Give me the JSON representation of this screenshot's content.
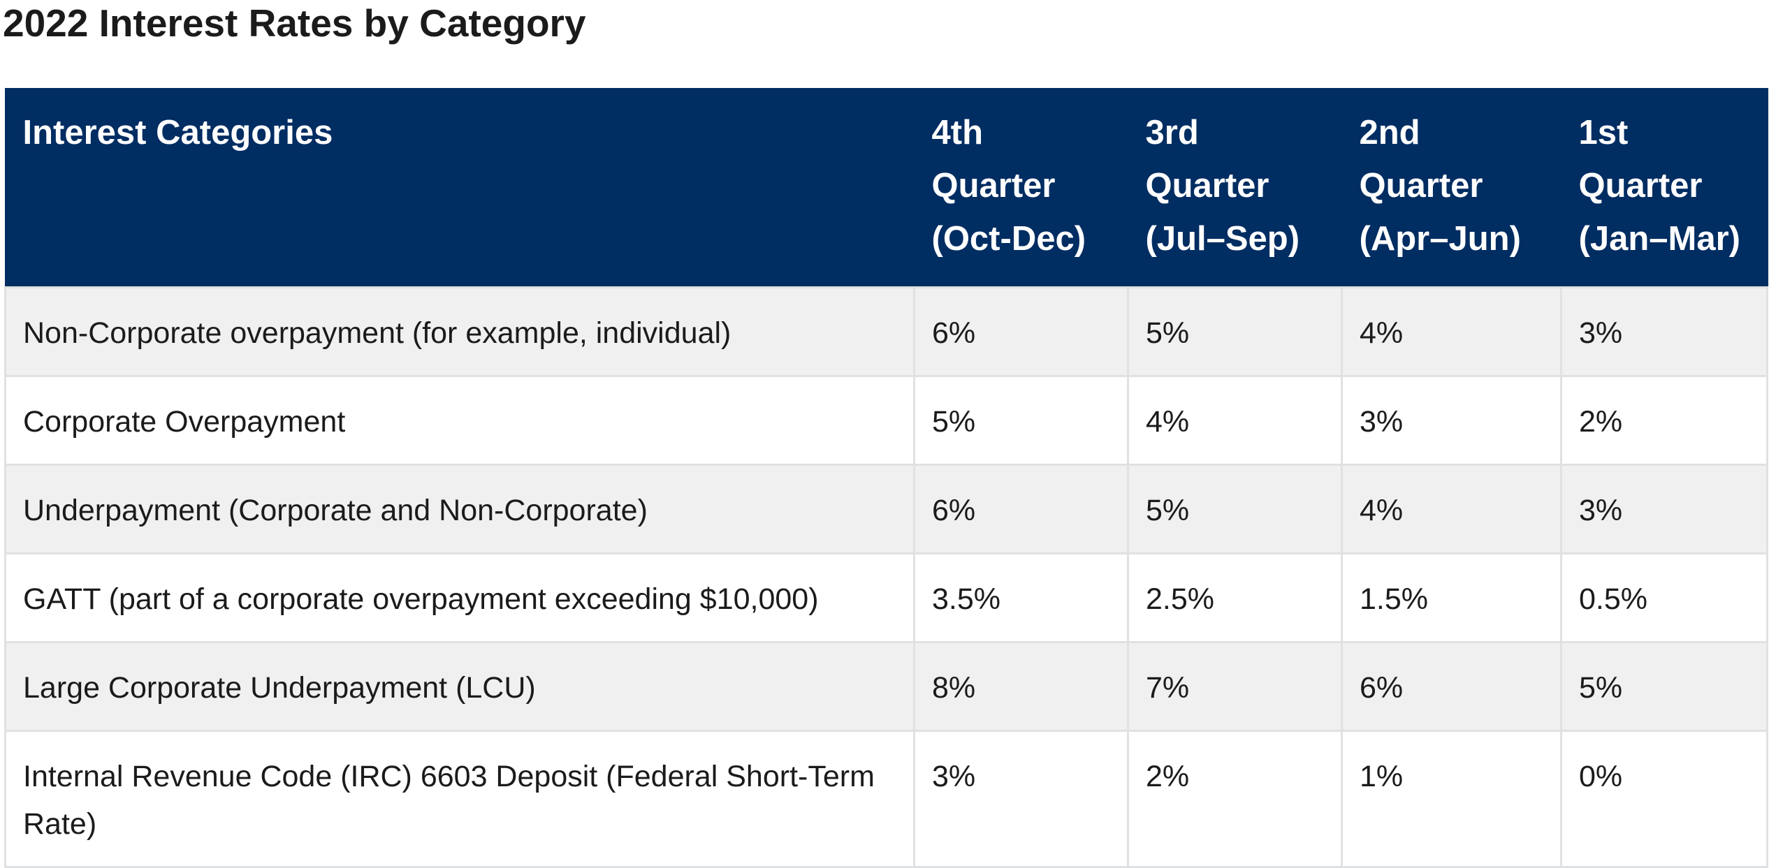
{
  "page": {
    "title": "2022 Interest Rates by Category"
  },
  "table": {
    "headers": [
      "Interest Categories",
      "4th Quarter (Oct-Dec)",
      "3rd Quarter (Jul–Sep)",
      "2nd Quarter (Apr–Jun)",
      "1st Quarter (Jan–Mar)"
    ],
    "rows": [
      [
        "Non-Corporate overpayment (for example, individual)",
        "6%",
        "5%",
        "4%",
        "3%"
      ],
      [
        "Corporate Overpayment",
        "5%",
        "4%",
        "3%",
        "2%"
      ],
      [
        "Underpayment (Corporate and Non-Corporate)",
        "6%",
        "5%",
        "4%",
        "3%"
      ],
      [
        "GATT (part of a corporate overpayment exceeding $10,000)",
        "3.5%",
        "2.5%",
        "1.5%",
        "0.5%"
      ],
      [
        "Large Corporate Underpayment (LCU)",
        "8%",
        "7%",
        "6%",
        "5%"
      ],
      [
        "Internal Revenue Code (IRC) 6603 Deposit (Federal Short-Term Rate)",
        "3%",
        "2%",
        "1%",
        "0%"
      ]
    ]
  },
  "colors": {
    "header_background": "#002d62",
    "header_text": "#ffffff",
    "row_stripe": "#f0f0f0",
    "border": "#dfe1e2"
  }
}
